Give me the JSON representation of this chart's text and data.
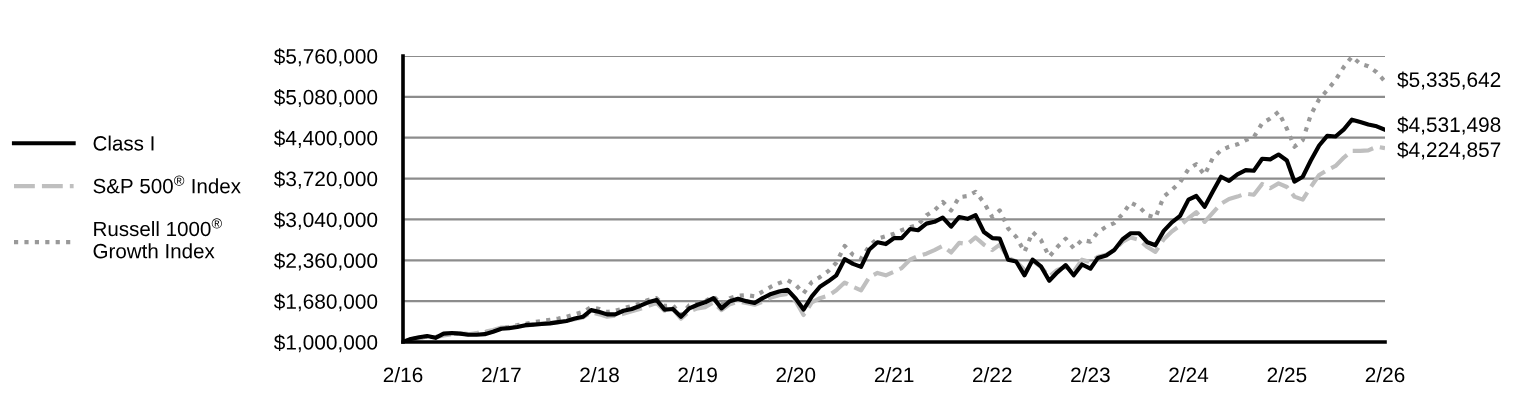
{
  "chart_data": {
    "type": "line",
    "x": [
      "2016-02",
      "2016-03",
      "2016-04",
      "2016-05",
      "2016-06",
      "2016-07",
      "2016-08",
      "2016-09",
      "2016-10",
      "2016-11",
      "2016-12",
      "2017-01",
      "2017-02",
      "2017-03",
      "2017-04",
      "2017-05",
      "2017-06",
      "2017-07",
      "2017-08",
      "2017-09",
      "2017-10",
      "2017-11",
      "2017-12",
      "2018-01",
      "2018-02",
      "2018-03",
      "2018-04",
      "2018-05",
      "2018-06",
      "2018-07",
      "2018-08",
      "2018-09",
      "2018-10",
      "2018-11",
      "2018-12",
      "2019-01",
      "2019-02",
      "2019-03",
      "2019-04",
      "2019-05",
      "2019-06",
      "2019-07",
      "2019-08",
      "2019-09",
      "2019-10",
      "2019-11",
      "2019-12",
      "2020-01",
      "2020-02",
      "2020-03",
      "2020-04",
      "2020-05",
      "2020-06",
      "2020-07",
      "2020-08",
      "2020-09",
      "2020-10",
      "2020-11",
      "2020-12",
      "2021-01",
      "2021-02",
      "2021-03",
      "2021-04",
      "2021-05",
      "2021-06",
      "2021-07",
      "2021-08",
      "2021-09",
      "2021-10",
      "2021-11",
      "2021-12",
      "2022-01",
      "2022-02",
      "2022-03",
      "2022-04",
      "2022-05",
      "2022-06",
      "2022-07",
      "2022-08",
      "2022-09",
      "2022-10",
      "2022-11",
      "2022-12",
      "2023-01",
      "2023-02",
      "2023-03",
      "2023-04",
      "2023-05",
      "2023-06",
      "2023-07",
      "2023-08",
      "2023-09",
      "2023-10",
      "2023-11",
      "2023-12",
      "2024-01",
      "2024-02",
      "2024-03",
      "2024-04",
      "2024-05",
      "2024-06",
      "2024-07",
      "2024-08",
      "2024-09",
      "2024-10",
      "2024-11",
      "2024-12",
      "2025-01",
      "2025-02",
      "2025-03",
      "2025-04",
      "2025-05",
      "2025-06",
      "2025-07",
      "2025-08",
      "2025-09",
      "2025-10",
      "2025-11",
      "2025-12",
      "2026-01",
      "2026-02"
    ],
    "xlim": [
      "2016-02",
      "2026-02"
    ],
    "xticks": [
      {
        "value": "2016-02",
        "label": "2/16"
      },
      {
        "value": "2017-02",
        "label": "2/17"
      },
      {
        "value": "2018-02",
        "label": "2/18"
      },
      {
        "value": "2019-02",
        "label": "2/19"
      },
      {
        "value": "2020-02",
        "label": "2/20"
      },
      {
        "value": "2021-02",
        "label": "2/21"
      },
      {
        "value": "2022-02",
        "label": "2/22"
      },
      {
        "value": "2023-02",
        "label": "2/23"
      },
      {
        "value": "2024-02",
        "label": "2/24"
      },
      {
        "value": "2025-02",
        "label": "2/25"
      },
      {
        "value": "2026-02",
        "label": "2/26"
      }
    ],
    "ylim": [
      1000000,
      5760000
    ],
    "yticks": [
      {
        "value": 1000000,
        "label": "$1,000,000"
      },
      {
        "value": 1680000,
        "label": "$1,680,000"
      },
      {
        "value": 2360000,
        "label": "$2,360,000"
      },
      {
        "value": 3040000,
        "label": "$3,040,000"
      },
      {
        "value": 3720000,
        "label": "$3,720,000"
      },
      {
        "value": 4400000,
        "label": "$4,400,000"
      },
      {
        "value": 5080000,
        "label": "$5,080,000"
      },
      {
        "value": 5760000,
        "label": "$5,760,000"
      }
    ],
    "grid": "y",
    "legend": "left",
    "series": [
      {
        "name": "Class I",
        "color": "#000000",
        "line_style": "solid",
        "values": [
          1000000,
          1050000,
          1080000,
          1100000,
          1070000,
          1140000,
          1150000,
          1140000,
          1120000,
          1120000,
          1130000,
          1170000,
          1220000,
          1230000,
          1250000,
          1280000,
          1290000,
          1300000,
          1310000,
          1330000,
          1350000,
          1390000,
          1420000,
          1530000,
          1500000,
          1460000,
          1460000,
          1520000,
          1550000,
          1600000,
          1660000,
          1700000,
          1540000,
          1550000,
          1420000,
          1560000,
          1620000,
          1660000,
          1730000,
          1560000,
          1680000,
          1720000,
          1680000,
          1650000,
          1730000,
          1800000,
          1840000,
          1870000,
          1720000,
          1540000,
          1760000,
          1920000,
          2010000,
          2110000,
          2380000,
          2300000,
          2250000,
          2540000,
          2660000,
          2630000,
          2730000,
          2730000,
          2880000,
          2860000,
          2970000,
          3000000,
          3070000,
          2920000,
          3080000,
          3050000,
          3110000,
          2830000,
          2730000,
          2720000,
          2370000,
          2340000,
          2110000,
          2370000,
          2260000,
          2020000,
          2160000,
          2280000,
          2110000,
          2290000,
          2220000,
          2400000,
          2440000,
          2530000,
          2710000,
          2810000,
          2810000,
          2660000,
          2610000,
          2850000,
          2990000,
          3100000,
          3370000,
          3430000,
          3250000,
          3500000,
          3750000,
          3680000,
          3790000,
          3860000,
          3850000,
          4050000,
          4040000,
          4120000,
          4020000,
          3670000,
          3750000,
          4020000,
          4270000,
          4430000,
          4420000,
          4540000,
          4700000,
          4660000,
          4620000,
          4590000,
          4531498
        ]
      },
      {
        "name": "S&P 500$^{®}$ Index",
        "color": "#bfbfbf",
        "line_style": "dashed",
        "values": [
          1000000,
          1040000,
          1060000,
          1080000,
          1080000,
          1110000,
          1130000,
          1140000,
          1130000,
          1150000,
          1170000,
          1200000,
          1240000,
          1240000,
          1260000,
          1270000,
          1290000,
          1310000,
          1320000,
          1330000,
          1360000,
          1380000,
          1410000,
          1490000,
          1460000,
          1420000,
          1440000,
          1470000,
          1510000,
          1550000,
          1600000,
          1650000,
          1520000,
          1550000,
          1390000,
          1510000,
          1560000,
          1580000,
          1660000,
          1530000,
          1630000,
          1670000,
          1650000,
          1620000,
          1670000,
          1740000,
          1780000,
          1800000,
          1680000,
          1450000,
          1660000,
          1730000,
          1770000,
          1860000,
          1990000,
          1920000,
          1860000,
          2080000,
          2150000,
          2110000,
          2170000,
          2230000,
          2370000,
          2430000,
          2470000,
          2530000,
          2600000,
          2490000,
          2650000,
          2630000,
          2740000,
          2620000,
          2530000,
          2620000,
          2400000,
          2340000,
          2200000,
          2350000,
          2250000,
          2090000,
          2200000,
          2250000,
          2170000,
          2370000,
          2330000,
          2420000,
          2450000,
          2530000,
          2670000,
          2740000,
          2700000,
          2580000,
          2500000,
          2710000,
          2840000,
          2940000,
          3060000,
          3160000,
          3000000,
          3150000,
          3300000,
          3380000,
          3420000,
          3470000,
          3450000,
          3630000,
          3560000,
          3640000,
          3580000,
          3420000,
          3370000,
          3580000,
          3780000,
          3860000,
          3930000,
          4070000,
          4180000,
          4180000,
          4190000,
          4250000,
          4224857
        ]
      },
      {
        "name": "Russell 1000$^{®}$\nGrowth Index",
        "color": "#999999",
        "line_style": "dotted",
        "values": [
          1000000,
          1040000,
          1070000,
          1090000,
          1080000,
          1130000,
          1140000,
          1140000,
          1130000,
          1140000,
          1160000,
          1190000,
          1230000,
          1250000,
          1280000,
          1300000,
          1330000,
          1350000,
          1370000,
          1390000,
          1420000,
          1460000,
          1500000,
          1580000,
          1550000,
          1500000,
          1520000,
          1560000,
          1600000,
          1640000,
          1700000,
          1730000,
          1600000,
          1610000,
          1450000,
          1610000,
          1650000,
          1680000,
          1760000,
          1620000,
          1730000,
          1770000,
          1780000,
          1760000,
          1840000,
          1920000,
          1980000,
          2030000,
          1950000,
          1810000,
          2000000,
          2080000,
          2180000,
          2320000,
          2600000,
          2450000,
          2390000,
          2600000,
          2720000,
          2760000,
          2800000,
          2860000,
          2910000,
          2950000,
          3110000,
          3190000,
          3330000,
          3190000,
          3410000,
          3430000,
          3500000,
          3320000,
          3080000,
          3190000,
          2890000,
          2750000,
          2500000,
          2830000,
          2700000,
          2420000,
          2580000,
          2720000,
          2560000,
          2700000,
          2670000,
          2830000,
          2920000,
          2980000,
          3130000,
          3320000,
          3250000,
          3110000,
          3070000,
          3420000,
          3530000,
          3660000,
          3880000,
          3960000,
          3780000,
          4060000,
          4190000,
          4250000,
          4290000,
          4360000,
          4410000,
          4640000,
          4720000,
          4830000,
          4550000,
          4250000,
          4360000,
          4780000,
          5040000,
          5190000,
          5360000,
          5580000,
          5750000,
          5630000,
          5590000,
          5490000,
          5335642
        ]
      }
    ],
    "annotations": [
      {
        "text": "$5,335,642",
        "x": "2026-02",
        "y": 5335642
      },
      {
        "text": "$4,531,498",
        "x": "2026-02",
        "y": 4531498
      },
      {
        "text": "$4,224,857",
        "x": "2026-02",
        "y": 4224857
      }
    ]
  }
}
